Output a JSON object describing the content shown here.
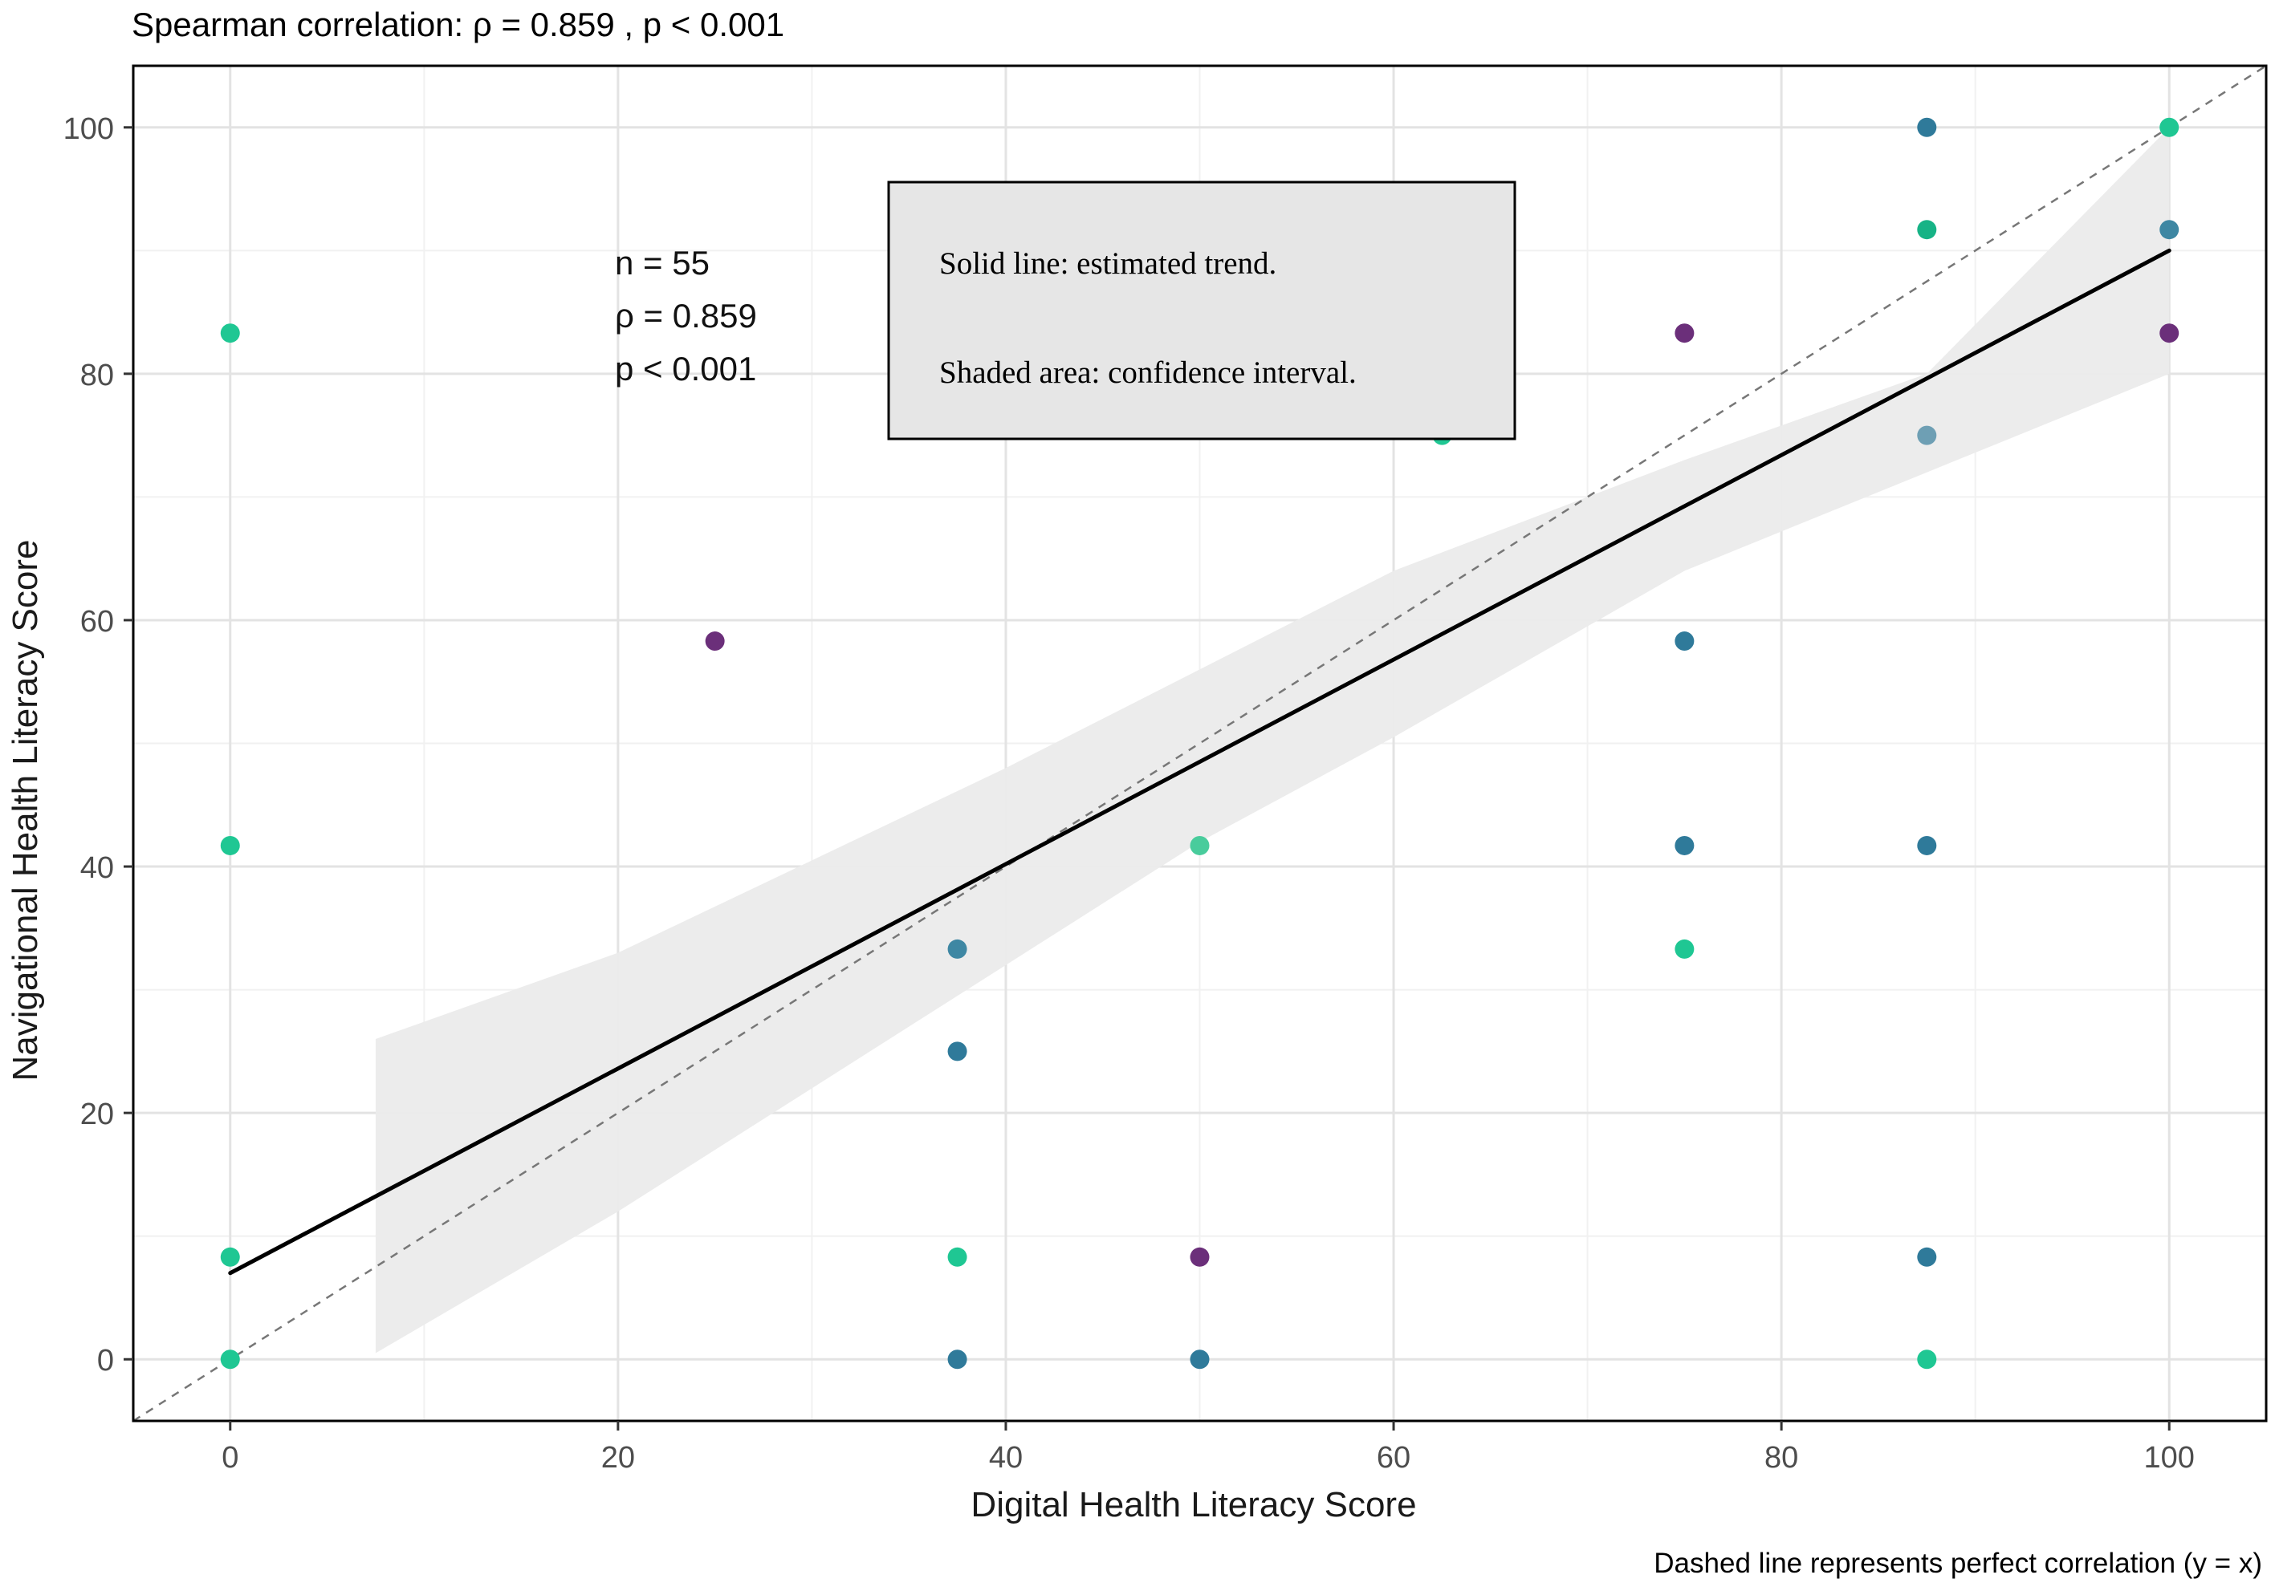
{
  "chart_data": {
    "type": "scatter",
    "title": "Spearman correlation: ρ = 0.859 , p < 0.001",
    "xlabel": "Digital Health Literacy Score",
    "ylabel": "Navigational Health Literacy Score",
    "caption": "Dashed line represents perfect correlation (y = x)",
    "xlim": [
      -5,
      105
    ],
    "ylim": [
      -5,
      105
    ],
    "x_ticks": [
      0,
      20,
      40,
      60,
      80,
      100
    ],
    "y_ticks": [
      0,
      20,
      40,
      60,
      80,
      100
    ],
    "grid": true,
    "stats_annotation": [
      "n = 55",
      "ρ = 0.859",
      "p < 0.001"
    ],
    "legend_box": [
      "Solid line: estimated trend.",
      "Shaded area: confidence interval."
    ],
    "identity_line": {
      "slope": 1,
      "intercept": 0,
      "style": "dashed"
    },
    "trend_line": {
      "x_start": 0,
      "y_start": 7,
      "x_end": 100,
      "y_end": 90
    },
    "confidence_band": {
      "x": [
        7.5,
        20,
        40,
        50,
        60,
        75,
        87.5,
        100
      ],
      "lower": [
        0.5,
        12,
        32,
        42,
        50.5,
        64,
        72,
        80
      ],
      "upper": [
        26,
        33,
        48,
        56,
        64,
        73,
        80,
        100
      ]
    },
    "points": [
      {
        "x": 0,
        "y": 0,
        "color": "#1fc793"
      },
      {
        "x": 0,
        "y": 8.3,
        "color": "#1fc793"
      },
      {
        "x": 0,
        "y": 41.7,
        "color": "#1fc793"
      },
      {
        "x": 0,
        "y": 83.3,
        "color": "#1fc793"
      },
      {
        "x": 25,
        "y": 58.3,
        "color": "#6b2f7a"
      },
      {
        "x": 37.5,
        "y": 0,
        "color": "#2f7a9a"
      },
      {
        "x": 37.5,
        "y": 8.3,
        "color": "#1fc793"
      },
      {
        "x": 37.5,
        "y": 25,
        "color": "#2f7a9a"
      },
      {
        "x": 37.5,
        "y": 33.3,
        "color": "#3e87a3"
      },
      {
        "x": 50,
        "y": 0,
        "color": "#2f7a9a"
      },
      {
        "x": 50,
        "y": 8.3,
        "color": "#6b2f7a"
      },
      {
        "x": 50,
        "y": 41.7,
        "color": "#49cc9c"
      },
      {
        "x": 62.5,
        "y": 75,
        "color": "#1fc793"
      },
      {
        "x": 75,
        "y": 33.3,
        "color": "#1fc793"
      },
      {
        "x": 75,
        "y": 41.7,
        "color": "#2f7a9a"
      },
      {
        "x": 75,
        "y": 58.3,
        "color": "#2f7a9a"
      },
      {
        "x": 75,
        "y": 83.3,
        "color": "#6b2f7a"
      },
      {
        "x": 87.5,
        "y": 0,
        "color": "#1fc793"
      },
      {
        "x": 87.5,
        "y": 8.3,
        "color": "#2f7a9a"
      },
      {
        "x": 87.5,
        "y": 41.7,
        "color": "#2f7a9a"
      },
      {
        "x": 87.5,
        "y": 75,
        "color": "#6e9fb4"
      },
      {
        "x": 87.5,
        "y": 91.7,
        "color": "#17b386"
      },
      {
        "x": 87.5,
        "y": 100,
        "color": "#2f7a9a"
      },
      {
        "x": 100,
        "y": 83.3,
        "color": "#6b2f7a"
      },
      {
        "x": 100,
        "y": 91.7,
        "color": "#3e87a3"
      },
      {
        "x": 100,
        "y": 100,
        "color": "#1fc793"
      }
    ]
  }
}
